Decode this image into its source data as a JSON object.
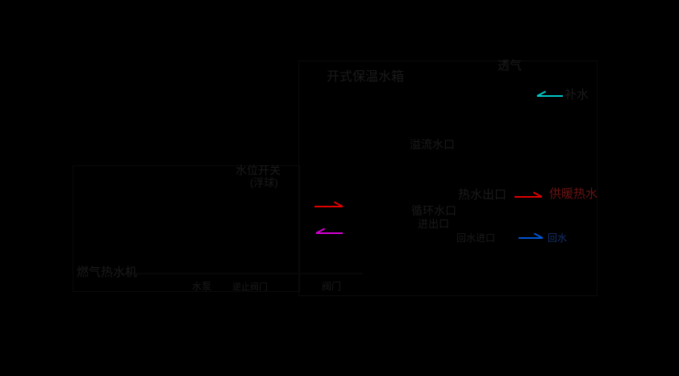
{
  "diagram": {
    "background": "#000000",
    "tank": {
      "title": "开式保温水箱",
      "vent_label": "透气",
      "makeup_label": "补水",
      "overflow_port": "溢流水口",
      "circulation_port_line1": "循环水口",
      "circulation_port_line2": "进出口",
      "hot_water_outlet": "热水出口",
      "return_water_inlet": "回水进口",
      "level_switch": "水位开关",
      "level_switch_note": "(浮球)"
    },
    "heater": {
      "title": "燃气热水机"
    },
    "pipeline": {
      "pump_label": "水泵",
      "check_valve_label": "逆止阀门",
      "valve_label": "阀门"
    },
    "external": {
      "heating_supply_label": "供暖热水",
      "heating_return_label": "回水"
    },
    "colors": {
      "text": "#1a1a1a",
      "makeup_arrow": "#00c8c8",
      "circulation_supply_arrow": "#e00000",
      "circulation_return_arrow": "#d400d4",
      "heating_supply_arrow": "#e00000",
      "heating_return_arrow": "#0055d4",
      "heating_supply_text": "#6b1212",
      "heating_return_text": "#16306b"
    }
  }
}
